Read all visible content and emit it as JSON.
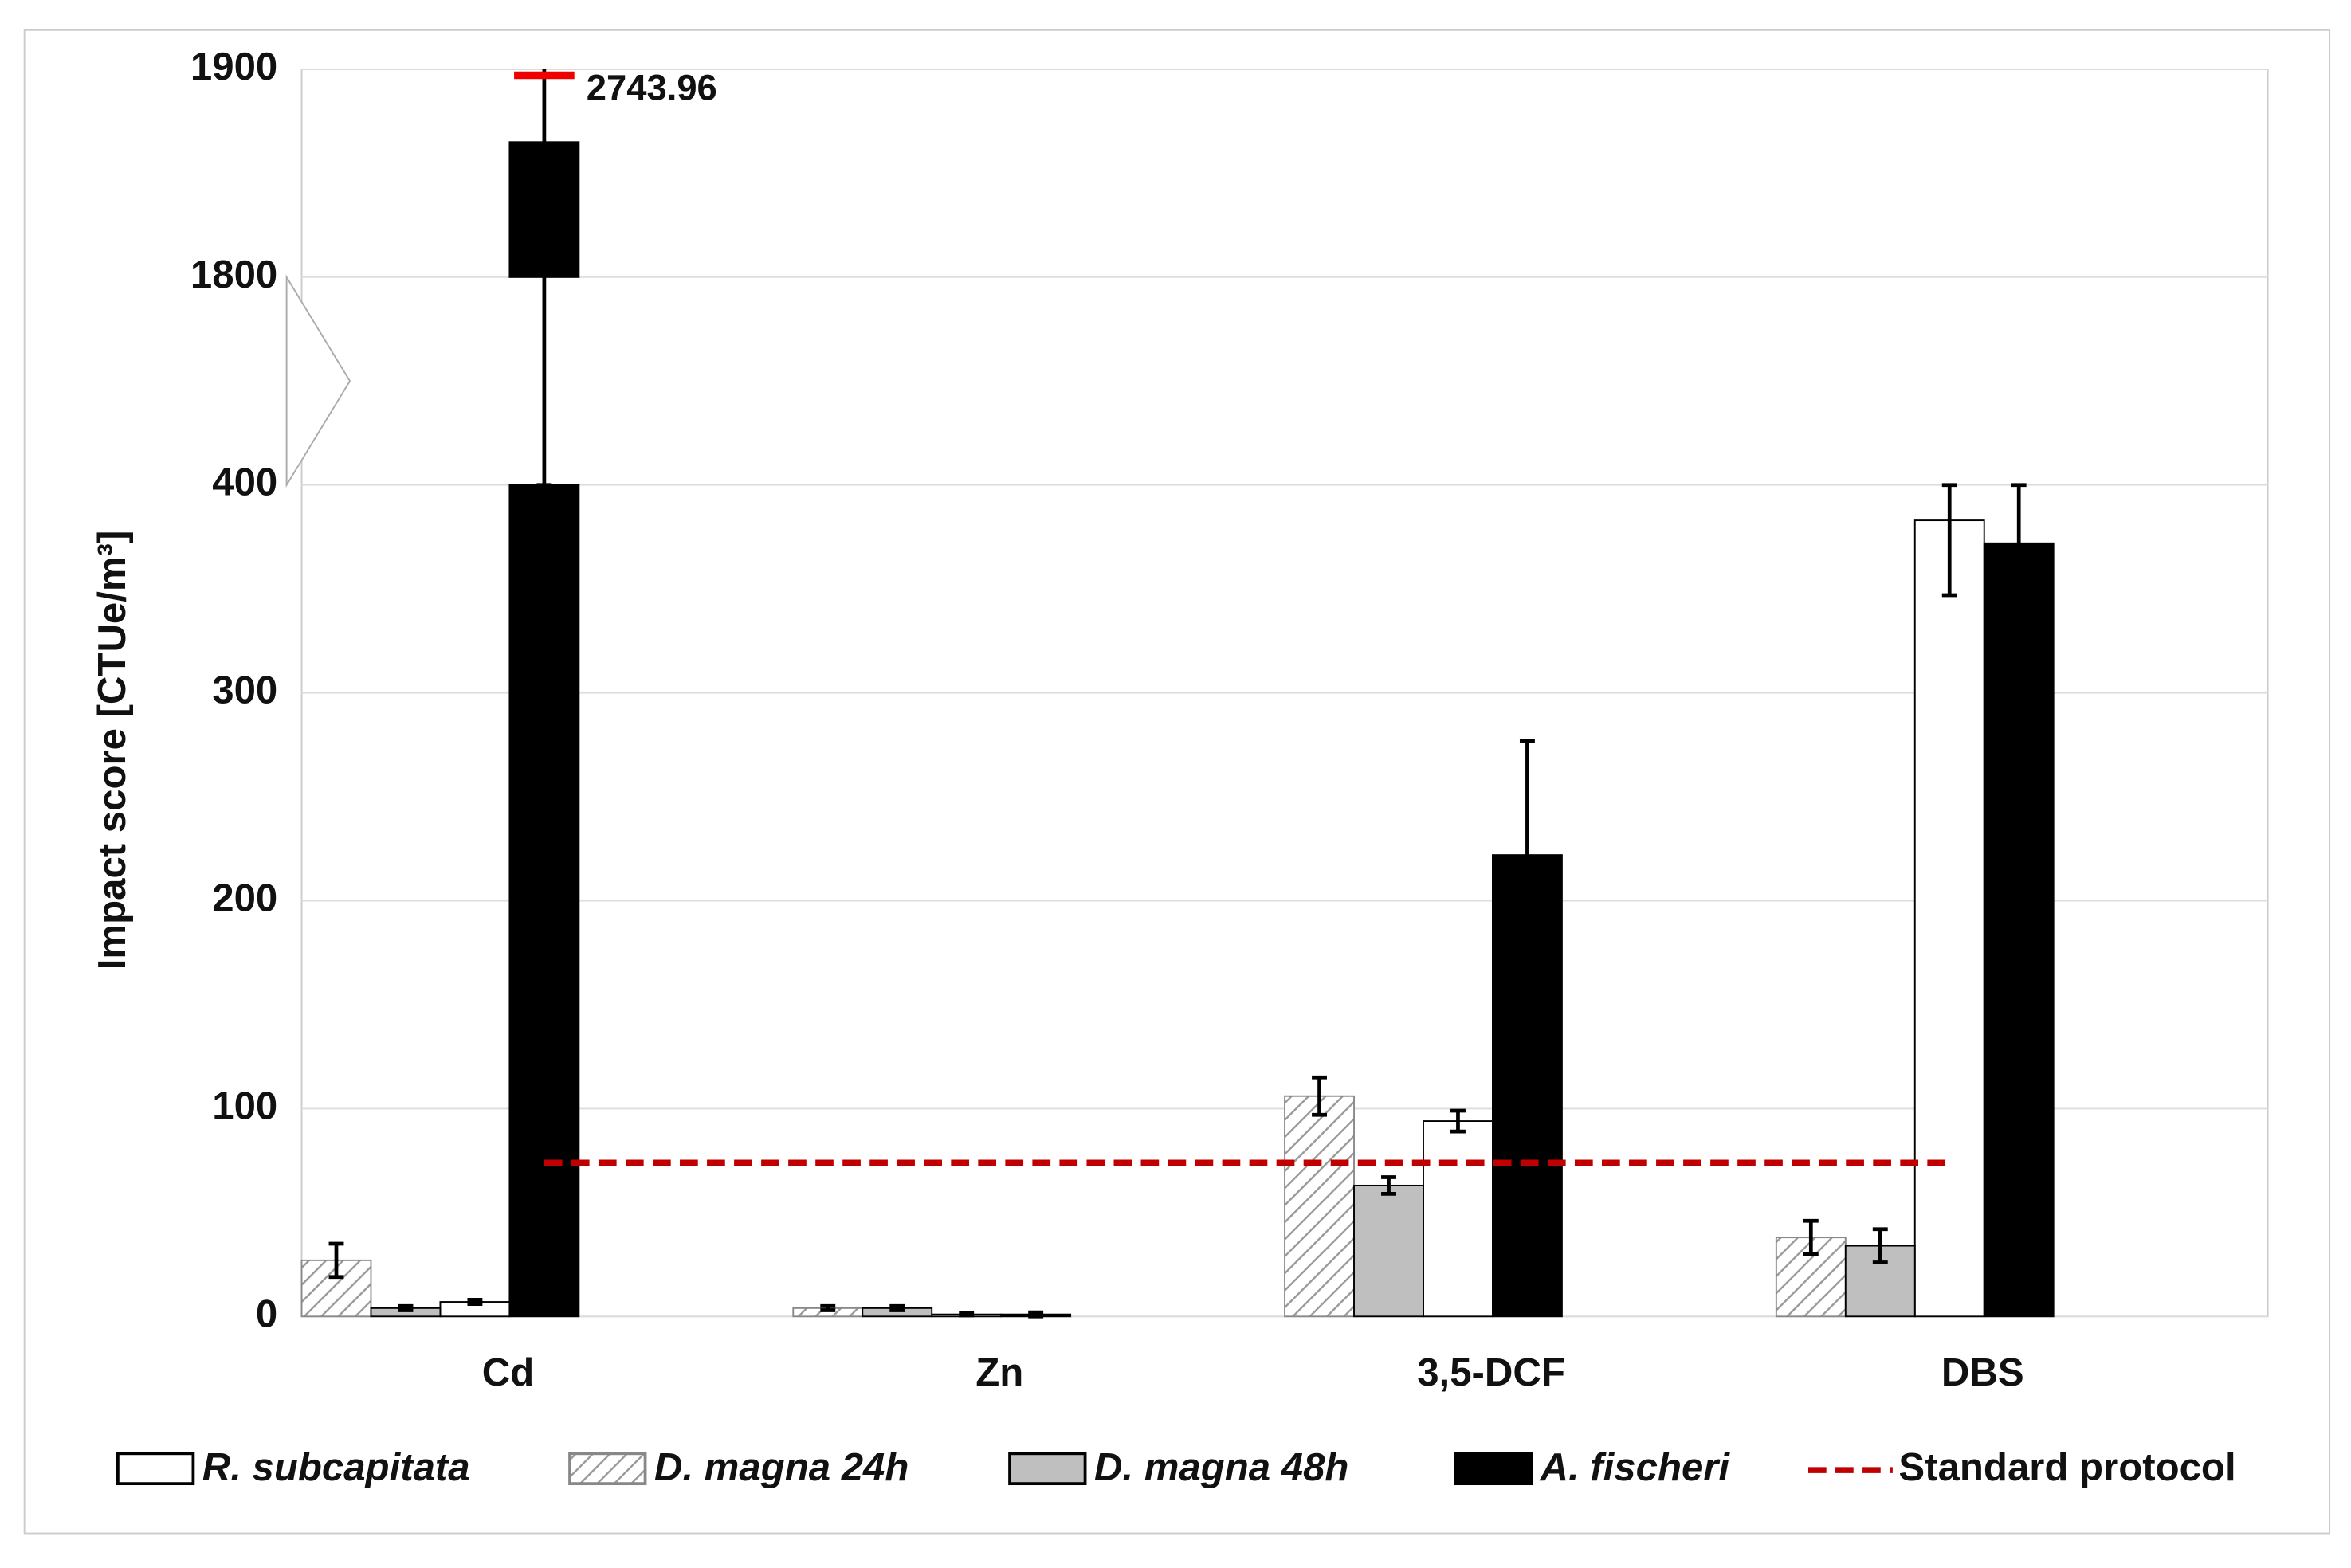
{
  "chart_data": {
    "type": "bar",
    "y_label": "Impact score [CTUe/m³]",
    "categories": [
      "Cd",
      "Zn",
      "3,5-DCF",
      "DBS"
    ],
    "series": [
      {
        "name": "R. subcapitata",
        "color": "#ffffff",
        "values": [
          7,
          1,
          94,
          383
        ],
        "errors": [
          1,
          0.5,
          5,
          36
        ]
      },
      {
        "name": "D. magna 24h",
        "color": "#ffffff",
        "hatch": true,
        "values": [
          27,
          4,
          106,
          38
        ],
        "errors": [
          8,
          1,
          9,
          8
        ]
      },
      {
        "name": "D. magna 48h",
        "color": "#bfbfbf",
        "values": [
          4,
          4,
          63,
          34
        ],
        "errors": [
          1,
          1,
          4,
          8
        ]
      },
      {
        "name": "A. fischeri",
        "color": "#000000",
        "values": [
          1865,
          1,
          222,
          372
        ],
        "errors": [
          72,
          1,
          55,
          47
        ]
      }
    ],
    "error_overflow_label": "2743.96",
    "reference_line": {
      "name": "Standard protocol",
      "value": 74,
      "color": "#c00000"
    },
    "ylim": [
      0,
      1900
    ],
    "ybreak": [
      400,
      1800
    ],
    "yticks": [
      0,
      100,
      200,
      300,
      400,
      1800,
      1900
    ],
    "grid": true
  }
}
